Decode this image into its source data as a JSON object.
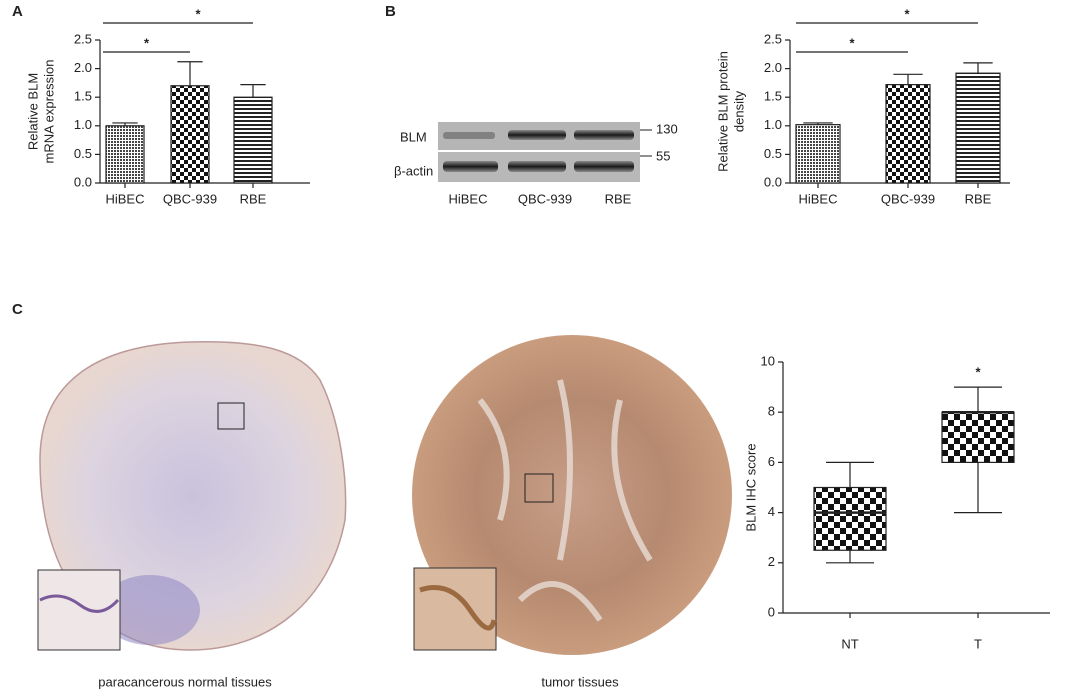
{
  "panels": [
    "A",
    "B",
    "C"
  ],
  "blot": {
    "rows": [
      "BLM",
      "β-actin"
    ],
    "markers": [
      "130",
      "55"
    ],
    "lanes": [
      "HiBEC",
      "QBC-939",
      "RBE"
    ]
  },
  "images": {
    "captions": [
      "paracancerous normal tissues",
      "tumor tissues"
    ]
  },
  "chart_data": [
    {
      "type": "bar",
      "y_label": [
        "Relative BLM",
        "mRNA expression"
      ],
      "categories": [
        "HiBEC",
        "QBC-939",
        "RBE"
      ],
      "values": [
        1.0,
        1.7,
        1.5
      ],
      "errors": [
        0.05,
        0.42,
        0.22
      ],
      "ylim": [
        0,
        2.5
      ],
      "yticks": [
        {
          "value": 0,
          "label": "0.0"
        },
        0.5,
        {
          "value": 1,
          "label": "1.0"
        },
        1.5,
        {
          "value": 2,
          "label": "2.0"
        },
        2.5
      ],
      "annotations": [
        "*",
        "*"
      ]
    },
    {
      "type": "bar",
      "y_label": [
        "Relative BLM protein",
        "density"
      ],
      "categories": [
        "HiBEC",
        "QBC-939",
        "RBE"
      ],
      "values": [
        1.02,
        1.72,
        1.92
      ],
      "errors": [
        0.03,
        0.18,
        0.18
      ],
      "ylim": [
        0,
        2.5
      ],
      "yticks": [
        {
          "value": 0,
          "label": "0.0"
        },
        0.5,
        {
          "value": 1,
          "label": "1.0"
        },
        1.5,
        {
          "value": 2,
          "label": "2.0"
        },
        2.5
      ],
      "annotations": [
        "*",
        "*"
      ]
    },
    {
      "type": "box",
      "y_label": [
        "BLM IHC score"
      ],
      "categories": [
        "NT",
        "T"
      ],
      "boxes": [
        {
          "min": 2,
          "q1": 2.5,
          "median": 4,
          "q3": 5,
          "max": 6
        },
        {
          "min": 4,
          "q1": 6,
          "median": 8,
          "q3": 8,
          "max": 9
        }
      ],
      "ylim": [
        0,
        10
      ],
      "yticks": [
        0,
        2,
        4,
        6,
        8,
        10
      ],
      "annotations": [
        "*"
      ]
    }
  ]
}
